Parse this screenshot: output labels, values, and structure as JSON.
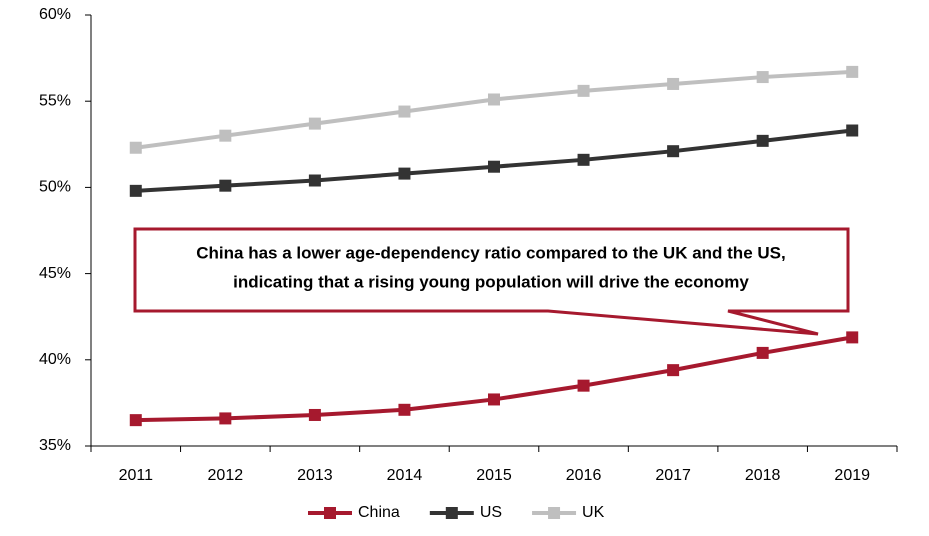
{
  "chart_data": {
    "type": "line",
    "categories": [
      "2011",
      "2012",
      "2013",
      "2014",
      "2015",
      "2016",
      "2017",
      "2018",
      "2019"
    ],
    "series": [
      {
        "name": "China",
        "color": "#a6192e",
        "values": [
          36.5,
          36.6,
          36.8,
          37.1,
          37.7,
          38.5,
          39.4,
          40.4,
          41.3
        ]
      },
      {
        "name": "US",
        "color": "#333333",
        "values": [
          49.8,
          50.1,
          50.4,
          50.8,
          51.2,
          51.6,
          52.1,
          52.7,
          53.3
        ]
      },
      {
        "name": "UK",
        "color": "#bfbfbf",
        "values": [
          52.3,
          53.0,
          53.7,
          54.4,
          55.1,
          55.6,
          56.0,
          56.4,
          56.7
        ]
      }
    ],
    "ylim": [
      35,
      60
    ],
    "yticks": [
      {
        "value": 35,
        "label": "35%"
      },
      {
        "value": 40,
        "label": "40%"
      },
      {
        "value": 45,
        "label": "45%"
      },
      {
        "value": 50,
        "label": "50%"
      },
      {
        "value": 55,
        "label": "55%"
      },
      {
        "value": 60,
        "label": "60%"
      }
    ],
    "annotation": [
      "China has a lower age-dependency ratio compared to the UK and the US,",
      "indicating that a rising young population will drive the economy"
    ],
    "legend": "bottom"
  }
}
